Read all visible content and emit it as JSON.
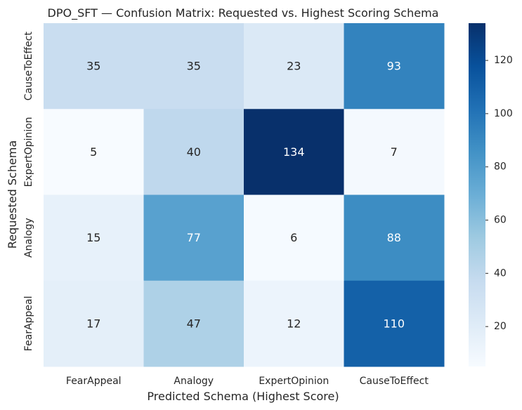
{
  "chart_data": {
    "type": "heatmap",
    "title": "DPO_SFT — Confusion Matrix: Requested vs. Highest Scoring Schema",
    "xlabel": "Predicted Schema (Highest Score)",
    "ylabel": "Requested Schema",
    "x_categories": [
      "FearAppeal",
      "Analogy",
      "ExpertOpinion",
      "CauseToEffect"
    ],
    "y_categories": [
      "CauseToEffect",
      "ExpertOpinion",
      "Analogy",
      "FearAppeal"
    ],
    "values": [
      [
        35,
        35,
        23,
        93
      ],
      [
        5,
        40,
        134,
        7
      ],
      [
        15,
        77,
        6,
        88
      ],
      [
        17,
        47,
        12,
        110
      ]
    ],
    "colorbar": {
      "vmin": 5,
      "vmax": 134,
      "ticks": [
        20,
        40,
        60,
        80,
        100,
        120
      ],
      "colormap": "Blues"
    }
  }
}
